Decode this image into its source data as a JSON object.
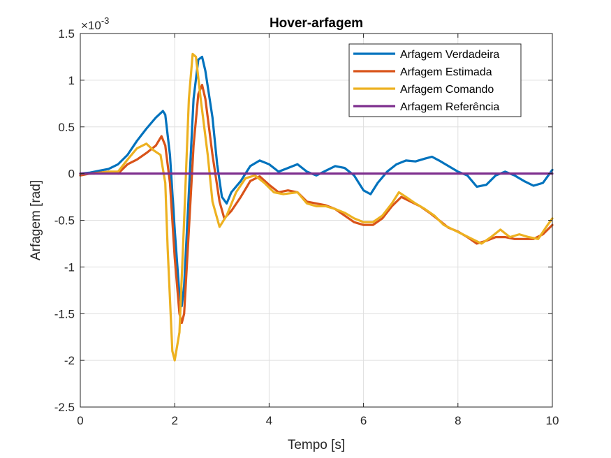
{
  "chart_data": {
    "type": "line",
    "title": "Hover-arfagem",
    "xlabel": "Tempo [s]",
    "ylabel": "Arfagem [rad]",
    "xlim": [
      0,
      10
    ],
    "ylim": [
      -2.5,
      1.5
    ],
    "y_exponent_base": "×10",
    "y_exponent_power": "-3",
    "x_ticks": [
      0,
      2,
      4,
      6,
      8,
      10
    ],
    "x_tick_labels": [
      "0",
      "2",
      "4",
      "6",
      "8",
      "10"
    ],
    "y_ticks": [
      -2.5,
      -2,
      -1.5,
      -1,
      -0.5,
      0,
      0.5,
      1,
      1.5
    ],
    "y_tick_labels": [
      "-2.5",
      "-2",
      "-1.5",
      "-1",
      "-0.5",
      "0",
      "0.5",
      "1",
      "1.5"
    ],
    "grid": true,
    "legend_position": "top-right",
    "series": [
      {
        "name": "Arfagem Verdadeira",
        "color": "#0072BD",
        "points": [
          [
            0,
            0
          ],
          [
            0.2,
            0.01
          ],
          [
            0.4,
            0.03
          ],
          [
            0.6,
            0.05
          ],
          [
            0.8,
            0.1
          ],
          [
            1.0,
            0.2
          ],
          [
            1.2,
            0.35
          ],
          [
            1.4,
            0.48
          ],
          [
            1.6,
            0.6
          ],
          [
            1.75,
            0.67
          ],
          [
            1.8,
            0.63
          ],
          [
            1.9,
            0.2
          ],
          [
            2.0,
            -0.6
          ],
          [
            2.1,
            -1.3
          ],
          [
            2.15,
            -1.42
          ],
          [
            2.2,
            -1.2
          ],
          [
            2.3,
            -0.2
          ],
          [
            2.4,
            0.8
          ],
          [
            2.5,
            1.22
          ],
          [
            2.58,
            1.25
          ],
          [
            2.65,
            1.1
          ],
          [
            2.8,
            0.6
          ],
          [
            2.9,
            0.1
          ],
          [
            3.0,
            -0.25
          ],
          [
            3.1,
            -0.32
          ],
          [
            3.2,
            -0.2
          ],
          [
            3.4,
            -0.08
          ],
          [
            3.6,
            0.08
          ],
          [
            3.8,
            0.14
          ],
          [
            4.0,
            0.1
          ],
          [
            4.2,
            0.02
          ],
          [
            4.4,
            0.06
          ],
          [
            4.6,
            0.1
          ],
          [
            4.8,
            0.02
          ],
          [
            5.0,
            -0.02
          ],
          [
            5.2,
            0.03
          ],
          [
            5.4,
            0.08
          ],
          [
            5.6,
            0.06
          ],
          [
            5.8,
            -0.02
          ],
          [
            6.0,
            -0.18
          ],
          [
            6.15,
            -0.22
          ],
          [
            6.3,
            -0.1
          ],
          [
            6.5,
            0.02
          ],
          [
            6.7,
            0.1
          ],
          [
            6.9,
            0.14
          ],
          [
            7.1,
            0.13
          ],
          [
            7.3,
            0.16
          ],
          [
            7.45,
            0.18
          ],
          [
            7.6,
            0.14
          ],
          [
            7.8,
            0.08
          ],
          [
            8.0,
            0.02
          ],
          [
            8.2,
            -0.02
          ],
          [
            8.4,
            -0.14
          ],
          [
            8.6,
            -0.12
          ],
          [
            8.8,
            -0.02
          ],
          [
            9.0,
            0.02
          ],
          [
            9.2,
            -0.02
          ],
          [
            9.4,
            -0.08
          ],
          [
            9.6,
            -0.13
          ],
          [
            9.8,
            -0.1
          ],
          [
            10.0,
            0.04
          ]
        ]
      },
      {
        "name": "Arfagem Estimada",
        "color": "#D95319",
        "points": [
          [
            0,
            -0.02
          ],
          [
            0.2,
            0.0
          ],
          [
            0.4,
            0.01
          ],
          [
            0.6,
            0.02
          ],
          [
            0.8,
            0.0
          ],
          [
            1.0,
            0.1
          ],
          [
            1.2,
            0.15
          ],
          [
            1.4,
            0.22
          ],
          [
            1.6,
            0.3
          ],
          [
            1.72,
            0.4
          ],
          [
            1.8,
            0.3
          ],
          [
            1.9,
            -0.1
          ],
          [
            2.0,
            -0.9
          ],
          [
            2.1,
            -1.5
          ],
          [
            2.15,
            -1.6
          ],
          [
            2.2,
            -1.5
          ],
          [
            2.3,
            -0.6
          ],
          [
            2.4,
            0.3
          ],
          [
            2.5,
            0.85
          ],
          [
            2.58,
            0.95
          ],
          [
            2.65,
            0.8
          ],
          [
            2.8,
            0.2
          ],
          [
            2.95,
            -0.3
          ],
          [
            3.05,
            -0.48
          ],
          [
            3.2,
            -0.4
          ],
          [
            3.4,
            -0.25
          ],
          [
            3.6,
            -0.08
          ],
          [
            3.8,
            -0.03
          ],
          [
            4.0,
            -0.12
          ],
          [
            4.2,
            -0.2
          ],
          [
            4.4,
            -0.18
          ],
          [
            4.6,
            -0.2
          ],
          [
            4.8,
            -0.3
          ],
          [
            5.0,
            -0.32
          ],
          [
            5.2,
            -0.34
          ],
          [
            5.4,
            -0.38
          ],
          [
            5.6,
            -0.45
          ],
          [
            5.8,
            -0.52
          ],
          [
            6.0,
            -0.55
          ],
          [
            6.2,
            -0.55
          ],
          [
            6.4,
            -0.48
          ],
          [
            6.6,
            -0.35
          ],
          [
            6.8,
            -0.25
          ],
          [
            7.0,
            -0.3
          ],
          [
            7.2,
            -0.35
          ],
          [
            7.4,
            -0.42
          ],
          [
            7.6,
            -0.5
          ],
          [
            7.8,
            -0.58
          ],
          [
            8.0,
            -0.62
          ],
          [
            8.2,
            -0.68
          ],
          [
            8.4,
            -0.75
          ],
          [
            8.6,
            -0.72
          ],
          [
            8.8,
            -0.68
          ],
          [
            9.0,
            -0.68
          ],
          [
            9.2,
            -0.7
          ],
          [
            9.4,
            -0.7
          ],
          [
            9.6,
            -0.7
          ],
          [
            9.8,
            -0.65
          ],
          [
            10.0,
            -0.55
          ]
        ]
      },
      {
        "name": "Arfagem Comando",
        "color": "#EDB120",
        "points": [
          [
            0,
            0
          ],
          [
            0.3,
            0.0
          ],
          [
            0.6,
            0.02
          ],
          [
            0.8,
            0.02
          ],
          [
            1.0,
            0.15
          ],
          [
            1.2,
            0.27
          ],
          [
            1.4,
            0.32
          ],
          [
            1.55,
            0.25
          ],
          [
            1.7,
            0.2
          ],
          [
            1.8,
            -0.1
          ],
          [
            1.85,
            -0.8
          ],
          [
            1.95,
            -1.9
          ],
          [
            2.0,
            -2.0
          ],
          [
            2.1,
            -1.7
          ],
          [
            2.2,
            -0.5
          ],
          [
            2.3,
            0.8
          ],
          [
            2.38,
            1.28
          ],
          [
            2.45,
            1.25
          ],
          [
            2.55,
            0.8
          ],
          [
            2.7,
            0.2
          ],
          [
            2.8,
            -0.3
          ],
          [
            2.95,
            -0.57
          ],
          [
            3.1,
            -0.45
          ],
          [
            3.3,
            -0.2
          ],
          [
            3.5,
            -0.05
          ],
          [
            3.7,
            -0.02
          ],
          [
            3.9,
            -0.1
          ],
          [
            4.1,
            -0.2
          ],
          [
            4.3,
            -0.22
          ],
          [
            4.6,
            -0.2
          ],
          [
            4.8,
            -0.32
          ],
          [
            5.0,
            -0.35
          ],
          [
            5.2,
            -0.35
          ],
          [
            5.4,
            -0.38
          ],
          [
            5.6,
            -0.42
          ],
          [
            5.8,
            -0.48
          ],
          [
            6.0,
            -0.52
          ],
          [
            6.2,
            -0.52
          ],
          [
            6.4,
            -0.45
          ],
          [
            6.6,
            -0.32
          ],
          [
            6.75,
            -0.2
          ],
          [
            6.9,
            -0.25
          ],
          [
            7.1,
            -0.32
          ],
          [
            7.3,
            -0.38
          ],
          [
            7.5,
            -0.45
          ],
          [
            7.7,
            -0.55
          ],
          [
            7.9,
            -0.6
          ],
          [
            8.1,
            -0.65
          ],
          [
            8.3,
            -0.7
          ],
          [
            8.5,
            -0.75
          ],
          [
            8.7,
            -0.68
          ],
          [
            8.9,
            -0.6
          ],
          [
            9.1,
            -0.68
          ],
          [
            9.3,
            -0.65
          ],
          [
            9.5,
            -0.68
          ],
          [
            9.7,
            -0.7
          ],
          [
            9.9,
            -0.55
          ],
          [
            10.0,
            -0.48
          ]
        ]
      },
      {
        "name": "Arfagem Referência",
        "color": "#7E2F8E",
        "points": [
          [
            0,
            0
          ],
          [
            10,
            0
          ]
        ]
      }
    ]
  }
}
